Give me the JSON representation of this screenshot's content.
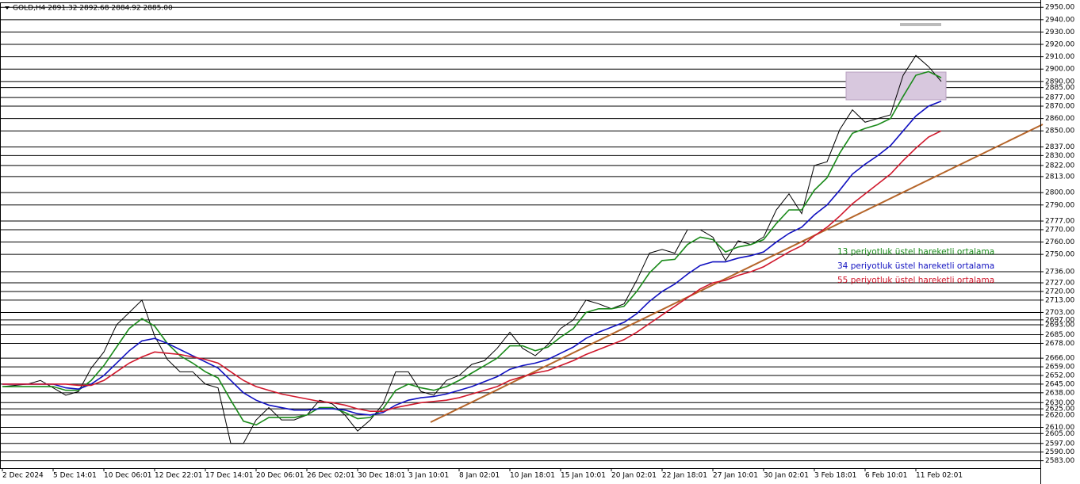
{
  "chart_data": {
    "type": "line",
    "title": "GOLD,H4  2891.32 2892.68 2884.92 2885.00",
    "categories": [
      "2 Dec 2024",
      null,
      null,
      null,
      "5 Dec 14:01",
      null,
      null,
      null,
      "10 Dec 06:01",
      null,
      null,
      null,
      "12 Dec 22:01",
      null,
      null,
      null,
      "17 Dec 14:01",
      null,
      null,
      null,
      "20 Dec 06:01",
      null,
      null,
      null,
      "26 Dec 02:01",
      null,
      null,
      null,
      "30 Dec 18:01",
      null,
      null,
      null,
      "3 Jan 10:01",
      null,
      null,
      null,
      "8 Jan 02:01",
      null,
      null,
      null,
      "10 Jan 18:01",
      null,
      null,
      null,
      "15 Jan 10:01",
      null,
      null,
      null,
      "20 Jan 02:01",
      null,
      null,
      null,
      "22 Jan 18:01",
      null,
      null,
      null,
      "27 Jan 10:01",
      null,
      null,
      null,
      "30 Jan 02:01",
      null,
      null,
      null,
      "3 Feb 18:01",
      null,
      null,
      null,
      "6 Feb 10:01",
      null,
      null,
      null,
      "11 Feb 02:01",
      null,
      null
    ],
    "series": [
      {
        "color": "#000000",
        "values": [
          2643,
          2644,
          2645,
          2648,
          2642,
          2636,
          2639,
          2658,
          2671,
          2693,
          2703,
          2713,
          2684,
          2665,
          2655,
          2655,
          2645,
          2642,
          2597,
          2597,
          2616,
          2626,
          2616,
          2616,
          2620,
          2632,
          2629,
          2620,
          2607,
          2616,
          2629,
          2655,
          2655,
          2639,
          2636,
          2648,
          2652,
          2661,
          2664,
          2674,
          2687,
          2674,
          2668,
          2677,
          2690,
          2697,
          2713,
          2710,
          2706,
          2710,
          2729,
          2751,
          2754,
          2751,
          2770,
          2770,
          2764,
          2745,
          2761,
          2758,
          2764,
          2786,
          2799,
          2783,
          2822,
          2825,
          2851,
          2867,
          2857,
          2860,
          2863,
          2895,
          2911,
          2902,
          2890
        ]
      },
      {
        "name": "13 periyotluk üstel hareketli ortalama",
        "color": "#1a8a1a",
        "values": [
          2643,
          2643,
          2643,
          2643,
          2643,
          2640,
          2640,
          2648,
          2660,
          2675,
          2690,
          2698,
          2692,
          2678,
          2668,
          2662,
          2655,
          2650,
          2632,
          2615,
          2612,
          2618,
          2618,
          2618,
          2620,
          2626,
          2626,
          2622,
          2617,
          2618,
          2625,
          2640,
          2645,
          2642,
          2640,
          2643,
          2648,
          2654,
          2660,
          2666,
          2676,
          2676,
          2672,
          2675,
          2683,
          2690,
          2703,
          2706,
          2706,
          2708,
          2720,
          2735,
          2745,
          2746,
          2758,
          2764,
          2762,
          2752,
          2756,
          2758,
          2762,
          2775,
          2786,
          2786,
          2802,
          2812,
          2832,
          2848,
          2852,
          2855,
          2860,
          2878,
          2895,
          2898,
          2893
        ]
      },
      {
        "name": "34 periyotluk üstel hareketli ortalama",
        "color": "#1010c0",
        "values": [
          2645,
          2645,
          2645,
          2645,
          2645,
          2642,
          2641,
          2645,
          2652,
          2662,
          2672,
          2680,
          2682,
          2678,
          2673,
          2668,
          2663,
          2658,
          2648,
          2638,
          2632,
          2628,
          2626,
          2624,
          2624,
          2625,
          2625,
          2624,
          2621,
          2620,
          2622,
          2628,
          2632,
          2634,
          2635,
          2637,
          2640,
          2643,
          2647,
          2651,
          2657,
          2660,
          2662,
          2665,
          2670,
          2675,
          2682,
          2687,
          2691,
          2695,
          2702,
          2712,
          2720,
          2726,
          2734,
          2741,
          2744,
          2744,
          2747,
          2749,
          2752,
          2760,
          2767,
          2772,
          2782,
          2790,
          2802,
          2815,
          2823,
          2830,
          2838,
          2850,
          2862,
          2870,
          2874
        ]
      },
      {
        "name": "55 periyotluk üstel hareketli ortalama",
        "color": "#d0182c",
        "values": [
          2645,
          2645,
          2645,
          2645,
          2645,
          2645,
          2644,
          2644,
          2648,
          2655,
          2662,
          2667,
          2671,
          2670,
          2669,
          2667,
          2665,
          2662,
          2655,
          2648,
          2643,
          2640,
          2637,
          2635,
          2633,
          2631,
          2630,
          2628,
          2625,
          2623,
          2623,
          2626,
          2628,
          2630,
          2631,
          2632,
          2634,
          2637,
          2640,
          2643,
          2648,
          2651,
          2654,
          2656,
          2660,
          2664,
          2669,
          2673,
          2677,
          2681,
          2687,
          2694,
          2701,
          2708,
          2715,
          2722,
          2727,
          2729,
          2733,
          2736,
          2740,
          2746,
          2752,
          2757,
          2765,
          2772,
          2781,
          2791,
          2799,
          2807,
          2815,
          2826,
          2836,
          2845,
          2850
        ]
      }
    ],
    "ylim": [
      2568,
      2954
    ],
    "yticks": [
      {
        "value": 2950,
        "label": "2950.00"
      },
      {
        "value": 2940,
        "label": "2940.00"
      },
      {
        "value": 2930,
        "label": "2930.00"
      },
      {
        "value": 2920,
        "label": "2920.00"
      },
      {
        "value": 2910,
        "label": "2910.00"
      },
      {
        "value": 2900,
        "label": "2900.00"
      },
      {
        "value": 2890,
        "label": "2890.00"
      },
      {
        "value": 2885,
        "label": "2885.00"
      },
      {
        "value": 2877,
        "label": "2877.00"
      },
      {
        "value": 2870,
        "label": "2870.00"
      },
      {
        "value": 2860,
        "label": "2860.00"
      },
      {
        "value": 2850,
        "label": "2850.00"
      },
      {
        "value": 2837,
        "label": "2837.00"
      },
      {
        "value": 2830,
        "label": "2830.00"
      },
      {
        "value": 2822,
        "label": "2822.00"
      },
      {
        "value": 2813,
        "label": "2813.00"
      },
      {
        "value": 2800,
        "label": "2800.00"
      },
      {
        "value": 2790,
        "label": "2790.00"
      },
      {
        "value": 2777,
        "label": "2777.00"
      },
      {
        "value": 2770,
        "label": "2770.00"
      },
      {
        "value": 2760,
        "label": "2760.00"
      },
      {
        "value": 2750,
        "label": "2750.00"
      },
      {
        "value": 2736,
        "label": "2736.00"
      },
      {
        "value": 2727,
        "label": "2727.00"
      },
      {
        "value": 2720,
        "label": "2720.00"
      },
      {
        "value": 2713,
        "label": "2713.00"
      },
      {
        "value": 2703,
        "label": "2703.00"
      },
      {
        "value": 2697,
        "label": "2697.00"
      },
      {
        "value": 2693,
        "label": "2693.00"
      },
      {
        "value": 2685,
        "label": "2685.00"
      },
      {
        "value": 2678,
        "label": "2678.00"
      },
      {
        "value": 2666,
        "label": "2666.00"
      },
      {
        "value": 2659,
        "label": "2659.00"
      },
      {
        "value": 2652,
        "label": "2652.00"
      },
      {
        "value": 2645,
        "label": "2645.00"
      },
      {
        "value": 2638,
        "label": "2638.00"
      },
      {
        "value": 2630,
        "label": "2630.00"
      },
      {
        "value": 2625,
        "label": "2625.00"
      },
      {
        "value": 2620,
        "label": "2620.00"
      },
      {
        "value": 2610,
        "label": "2610.00"
      },
      {
        "value": 2605,
        "label": "2605.00"
      },
      {
        "value": 2597,
        "label": "2597.00"
      },
      {
        "value": 2590,
        "label": "2590.00"
      },
      {
        "value": 2583,
        "label": "2583.00"
      }
    ],
    "grid": true
  }
}
